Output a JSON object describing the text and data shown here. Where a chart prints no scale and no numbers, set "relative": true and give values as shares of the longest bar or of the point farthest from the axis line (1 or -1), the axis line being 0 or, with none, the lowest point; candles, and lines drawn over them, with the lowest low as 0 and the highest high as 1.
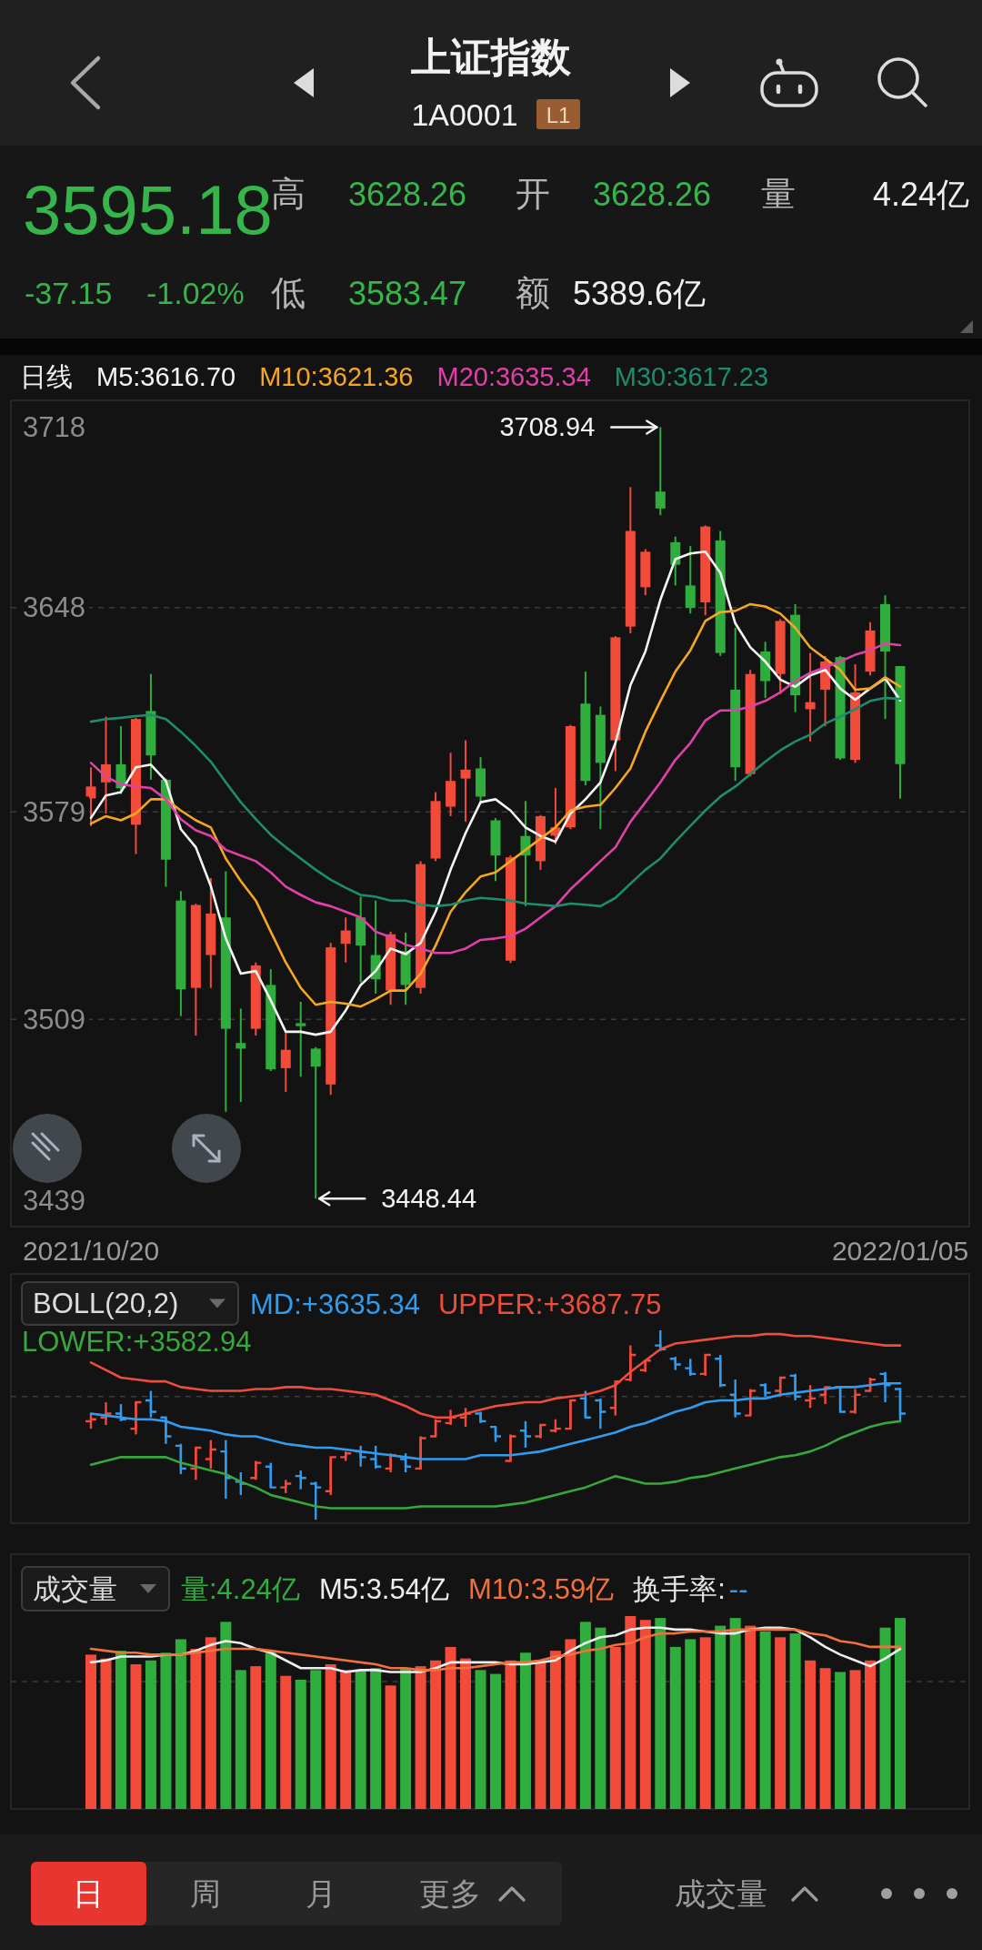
{
  "chart_data": [
    {
      "type": "other",
      "title": "上证指数",
      "subtitle": "1A0001",
      "annotations": [
        "L1",
        "3595.18",
        "高",
        "3628.26",
        "开",
        "3628.26",
        "量",
        "4.24亿",
        "-37.15",
        "-1.02%",
        "低",
        "3583.47",
        "额",
        "5389.6亿"
      ]
    },
    {
      "type": "candlestick",
      "title": "日线",
      "legend": "top",
      "grid": "y",
      "ylim": [
        3439,
        3718
      ],
      "yticks": [
        3439,
        3509,
        3579,
        3648,
        3718
      ],
      "categories": [
        "2021/10/20",
        null,
        null,
        null,
        null,
        null,
        null,
        null,
        null,
        null,
        null,
        null,
        null,
        null,
        null,
        null,
        null,
        null,
        null,
        null,
        null,
        null,
        null,
        null,
        null,
        null,
        null,
        null,
        null,
        null,
        null,
        null,
        null,
        null,
        null,
        null,
        null,
        null,
        null,
        null,
        null,
        null,
        null,
        null,
        null,
        null,
        null,
        null,
        null,
        null,
        null,
        null,
        null,
        null,
        "2022/01/05"
      ],
      "ohlc": [
        [
          3583.6,
          3594.1,
          3574.3,
          3587.6
        ],
        [
          3589.0,
          3611.2,
          3578.5,
          3595.1
        ],
        [
          3595.1,
          3608.0,
          3585.0,
          3587.0
        ],
        [
          3574.7,
          3610.8,
          3564.8,
          3610.4
        ],
        [
          3613.1,
          3625.6,
          3589.9,
          3598.1
        ],
        [
          3589.9,
          3590.3,
          3553.8,
          3562.9
        ],
        [
          3549.1,
          3552.3,
          3510.1,
          3519.1
        ],
        [
          3519.6,
          3548.0,
          3503.5,
          3547.6
        ],
        [
          3530.7,
          3556.7,
          3519.6,
          3544.7
        ],
        [
          3543.4,
          3559.0,
          3477.8,
          3505.8
        ],
        [
          3501.0,
          3512.6,
          3481.1,
          3499.1
        ],
        [
          3505.8,
          3528.2,
          3503.5,
          3527.2
        ],
        [
          3520.6,
          3525.9,
          3491.5,
          3492.1
        ],
        [
          3492.5,
          3504.4,
          3484.5,
          3498.7
        ],
        [
          3507.7,
          3514.9,
          3489.6,
          3506.7
        ],
        [
          3499.1,
          3499.6,
          3448.44,
          3493.0
        ],
        [
          3487.0,
          3534.8,
          3483.5,
          3533.3
        ],
        [
          3534.5,
          3543.4,
          3528.2,
          3539.0
        ],
        [
          3543.4,
          3550.4,
          3521.5,
          3533.9
        ],
        [
          3530.7,
          3549.1,
          3517.7,
          3522.5
        ],
        [
          3518.7,
          3538.6,
          3513.9,
          3537.7
        ],
        [
          3532.0,
          3538.3,
          3513.9,
          3520.6
        ],
        [
          3519.6,
          3562.4,
          3517.7,
          3561.4
        ],
        [
          3563.3,
          3585.7,
          3562.4,
          3582.7
        ],
        [
          3580.8,
          3599.0,
          3577.6,
          3589.5
        ],
        [
          3590.3,
          3603.2,
          3575.7,
          3593.3
        ],
        [
          3593.7,
          3597.5,
          3582.3,
          3584.2
        ],
        [
          3576.2,
          3577.0,
          3555.7,
          3564.3
        ],
        [
          3528.8,
          3564.3,
          3528.0,
          3563.7
        ],
        [
          3570.9,
          3582.7,
          3547.2,
          3564.3
        ],
        [
          3562.4,
          3578.0,
          3559.5,
          3577.6
        ],
        [
          3571.0,
          3587.1,
          3568.1,
          3573.8
        ],
        [
          3573.8,
          3608.4,
          3573.2,
          3608.0
        ],
        [
          3615.6,
          3626.4,
          3588.0,
          3589.5
        ],
        [
          3611.8,
          3614.6,
          3573.2,
          3595.6
        ],
        [
          3603.2,
          3638.4,
          3592.8,
          3638.0
        ],
        [
          3641.6,
          3688.7,
          3639.3,
          3673.9
        ],
        [
          3654.9,
          3667.8,
          3652.2,
          3666.9
        ],
        [
          3687.2,
          3708.94,
          3679.2,
          3681.5
        ],
        [
          3670.1,
          3672.0,
          3655.5,
          3662.5
        ],
        [
          3655.5,
          3668.8,
          3646.0,
          3647.9
        ],
        [
          3649.8,
          3675.8,
          3645.4,
          3675.4
        ],
        [
          3670.7,
          3673.9,
          3631.7,
          3632.7
        ],
        [
          3620.3,
          3641.2,
          3589.5,
          3594.1
        ],
        [
          3591.8,
          3627.0,
          3591.0,
          3625.6
        ],
        [
          3633.2,
          3636.5,
          3617.5,
          3623.2
        ],
        [
          3625.6,
          3644.1,
          3618.8,
          3643.5
        ],
        [
          3645.6,
          3649.2,
          3612.7,
          3618.4
        ],
        [
          3613.7,
          3632.7,
          3602.8,
          3616.1
        ],
        [
          3620.3,
          3631.7,
          3608.0,
          3629.8
        ],
        [
          3631.3,
          3631.7,
          3596.6,
          3597.1
        ],
        [
          3596.6,
          3628.9,
          3595.6,
          3619.4
        ],
        [
          3626.4,
          3643.1,
          3625.1,
          3640.3
        ],
        [
          3649.2,
          3652.2,
          3610.4,
          3633.2
        ],
        [
          3628.26,
          3628.26,
          3583.47,
          3595.18
        ]
      ],
      "colors": [
        "#f24b3a",
        "#f24b3a",
        "#2fae3e",
        "#f24b3a",
        "#2fae3e",
        "#2fae3e",
        "#2fae3e",
        "#f24b3a",
        "#f24b3a",
        "#2fae3e",
        "#2fae3e",
        "#f24b3a",
        "#2fae3e",
        "#f24b3a",
        "#2fae3e",
        "#2fae3e",
        "#f24b3a",
        "#f24b3a",
        "#2fae3e",
        "#2fae3e",
        "#f24b3a",
        "#2fae3e",
        "#f24b3a",
        "#f24b3a",
        "#f24b3a",
        "#f24b3a",
        "#2fae3e",
        "#2fae3e",
        "#f24b3a",
        "#2fae3e",
        "#f24b3a",
        "#f24b3a",
        "#f24b3a",
        "#2fae3e",
        "#2fae3e",
        "#f24b3a",
        "#f24b3a",
        "#f24b3a",
        "#2fae3e",
        "#2fae3e",
        "#2fae3e",
        "#f24b3a",
        "#2fae3e",
        "#2fae3e",
        "#f24b3a",
        "#2fae3e",
        "#f24b3a",
        "#2fae3e",
        "#f24b3a",
        "#f24b3a",
        "#2fae3e",
        "#f24b3a",
        "#f24b3a",
        "#2fae3e",
        "#2fae3e"
      ],
      "series": [
        {
          "type": "line",
          "name": "M5:3616.70",
          "color": "#f5f5f5",
          "values": [
            3577.0,
            3584.6,
            3585.7,
            3594.1,
            3595.0,
            3589.5,
            3573.2,
            3567.1,
            3554.0,
            3536.3,
            3524.4,
            3525.3,
            3515.4,
            3504.8,
            3504.8,
            3503.8,
            3504.8,
            3512.0,
            3520.6,
            3525.3,
            3532.9,
            3531.0,
            3534.8,
            3545.3,
            3559.5,
            3571.9,
            3582.3,
            3583.3,
            3579.5,
            3573.8,
            3570.9,
            3569.0,
            3578.5,
            3583.3,
            3589.0,
            3602.3,
            3621.8,
            3633.2,
            3650.7,
            3664.4,
            3666.3,
            3666.9,
            3659.8,
            3642.7,
            3634.6,
            3629.8,
            3623.7,
            3621.3,
            3625.1,
            3627.0,
            3620.7,
            3616.9,
            3620.7,
            3624.1,
            3616.7
          ]
        },
        {
          "type": "line",
          "name": "M10:3621.36",
          "color": "#f5a623",
          "values": [
            3575.1,
            3577.6,
            3576.2,
            3578.5,
            3583.3,
            3583.3,
            3579.5,
            3576.2,
            3573.8,
            3563.3,
            3555.7,
            3549.1,
            3538.6,
            3528.2,
            3519.6,
            3513.9,
            3514.9,
            3514.3,
            3513.3,
            3515.8,
            3518.7,
            3518.7,
            3524.4,
            3533.9,
            3545.3,
            3551.9,
            3557.2,
            3558.6,
            3562.4,
            3566.2,
            3570.0,
            3573.8,
            3579.5,
            3580.8,
            3581.4,
            3587.1,
            3593.7,
            3606.1,
            3616.5,
            3626.4,
            3633.6,
            3643.5,
            3646.5,
            3646.9,
            3649.2,
            3648.4,
            3646.0,
            3641.2,
            3634.6,
            3630.8,
            3627.0,
            3620.3,
            3620.7,
            3624.5,
            3621.36
          ]
        },
        {
          "type": "line",
          "name": "M20:3635.34",
          "color": "#e040a8",
          "values": [
            3595.6,
            3590.9,
            3588.4,
            3587.6,
            3587.1,
            3583.3,
            3576.6,
            3572.8,
            3570.9,
            3566.2,
            3564.3,
            3562.4,
            3558.6,
            3553.8,
            3551.0,
            3548.5,
            3547.2,
            3545.3,
            3543.4,
            3538.6,
            3536.7,
            3534.2,
            3532.9,
            3531.4,
            3531.4,
            3532.9,
            3535.8,
            3536.3,
            3537.1,
            3539.6,
            3543.4,
            3547.2,
            3552.9,
            3557.6,
            3562.4,
            3567.1,
            3575.7,
            3582.3,
            3589.0,
            3596.6,
            3602.3,
            3609.9,
            3613.3,
            3613.3,
            3614.6,
            3616.5,
            3619.4,
            3623.2,
            3626.0,
            3627.9,
            3629.8,
            3632.1,
            3633.6,
            3635.9,
            3635.34
          ]
        },
        {
          "type": "line",
          "name": "M30:3617.23",
          "color": "#1e8c6e",
          "values": [
            3609.5,
            3610.4,
            3610.8,
            3611.4,
            3611.8,
            3610.4,
            3606.1,
            3601.3,
            3596.0,
            3589.0,
            3582.3,
            3576.6,
            3571.3,
            3567.1,
            3563.3,
            3559.5,
            3556.1,
            3553.4,
            3551.0,
            3550.4,
            3549.1,
            3549.1,
            3547.7,
            3547.2,
            3547.7,
            3549.1,
            3550.0,
            3549.6,
            3549.1,
            3548.1,
            3547.7,
            3547.2,
            3548.1,
            3547.7,
            3547.2,
            3550.0,
            3554.8,
            3559.5,
            3563.3,
            3569.0,
            3574.3,
            3579.5,
            3584.2,
            3587.6,
            3591.8,
            3596.0,
            3599.8,
            3602.8,
            3605.1,
            3608.9,
            3611.2,
            3613.7,
            3616.5,
            3617.5,
            3617.23
          ]
        }
      ],
      "annotations": [
        "3708.94",
        "3448.44"
      ]
    },
    {
      "type": "candlestick",
      "title": "BOLL(20,2)",
      "legend": "top",
      "relative": true,
      "categories": [
        null,
        null,
        null,
        null,
        null,
        null,
        null,
        null,
        null,
        null,
        null,
        null,
        null,
        null,
        null,
        null,
        null,
        null,
        null,
        null,
        null,
        null,
        null,
        null,
        null,
        null,
        null,
        null,
        null,
        null,
        null,
        null,
        null,
        null,
        null,
        null,
        null,
        null,
        null,
        null,
        null,
        null,
        null,
        null,
        null,
        null,
        null,
        null,
        null,
        null,
        null,
        null,
        null,
        null,
        null
      ],
      "ohlc": [
        [
          0.52,
          0.56,
          0.48,
          0.53
        ],
        [
          0.54,
          0.62,
          0.5,
          0.56
        ],
        [
          0.56,
          0.61,
          0.52,
          0.53
        ],
        [
          0.48,
          0.62,
          0.45,
          0.62
        ],
        [
          0.63,
          0.68,
          0.54,
          0.57
        ],
        [
          0.54,
          0.54,
          0.4,
          0.44
        ],
        [
          0.39,
          0.4,
          0.24,
          0.27
        ],
        [
          0.27,
          0.38,
          0.21,
          0.38
        ],
        [
          0.32,
          0.42,
          0.27,
          0.37
        ],
        [
          0.36,
          0.42,
          0.11,
          0.22
        ],
        [
          0.2,
          0.25,
          0.13,
          0.19
        ],
        [
          0.22,
          0.31,
          0.21,
          0.3
        ],
        [
          0.28,
          0.3,
          0.17,
          0.17
        ],
        [
          0.17,
          0.21,
          0.14,
          0.19
        ],
        [
          0.23,
          0.26,
          0.16,
          0.22
        ],
        [
          0.19,
          0.2,
          0,
          0.17
        ],
        [
          0.15,
          0.33,
          0.13,
          0.33
        ],
        [
          0.33,
          0.36,
          0.31,
          0.35
        ],
        [
          0.36,
          0.39,
          0.28,
          0.33
        ],
        [
          0.32,
          0.39,
          0.27,
          0.28
        ],
        [
          0.27,
          0.35,
          0.25,
          0.34
        ],
        [
          0.32,
          0.35,
          0.25,
          0.28
        ],
        [
          0.27,
          0.44,
          0.27,
          0.43
        ],
        [
          0.44,
          0.53,
          0.44,
          0.52
        ],
        [
          0.51,
          0.58,
          0.5,
          0.54
        ],
        [
          0.54,
          0.59,
          0.49,
          0.56
        ],
        [
          0.56,
          0.57,
          0.51,
          0.52
        ],
        [
          0.49,
          0.49,
          0.41,
          0.44
        ],
        [
          0.31,
          0.45,
          0.31,
          0.44
        ],
        [
          0.47,
          0.52,
          0.38,
          0.44
        ],
        [
          0.44,
          0.5,
          0.43,
          0.5
        ],
        [
          0.47,
          0.53,
          0.46,
          0.48
        ],
        [
          0.48,
          0.63,
          0.48,
          0.63
        ],
        [
          0.64,
          0.68,
          0.54,
          0.54
        ],
        [
          0.63,
          0.64,
          0.48,
          0.57
        ],
        [
          0.59,
          0.73,
          0.55,
          0.73
        ],
        [
          0.74,
          0.92,
          0.73,
          0.87
        ],
        [
          0.79,
          0.84,
          0.78,
          0.84
        ],
        [
          0.92,
          1,
          0.89,
          0.9
        ],
        [
          0.85,
          0.86,
          0.79,
          0.82
        ],
        [
          0.8,
          0.85,
          0.76,
          0.77
        ],
        [
          0.77,
          0.87,
          0.76,
          0.87
        ],
        [
          0.85,
          0.87,
          0.7,
          0.71
        ],
        [
          0.66,
          0.74,
          0.54,
          0.56
        ],
        [
          0.55,
          0.69,
          0.55,
          0.68
        ],
        [
          0.71,
          0.72,
          0.65,
          0.67
        ],
        [
          0.68,
          0.75,
          0.65,
          0.75
        ],
        [
          0.76,
          0.77,
          0.63,
          0.65
        ],
        [
          0.63,
          0.71,
          0.59,
          0.64
        ],
        [
          0.66,
          0.7,
          0.61,
          0.7
        ],
        [
          0.7,
          0.7,
          0.57,
          0.57
        ],
        [
          0.57,
          0.69,
          0.56,
          0.66
        ],
        [
          0.68,
          0.75,
          0.68,
          0.74
        ],
        [
          0.77,
          0.78,
          0.62,
          0.71
        ],
        [
          0.69,
          0.69,
          0.52,
          0.56
        ]
      ],
      "colors": [
        "#f24b3a",
        "#f24b3a",
        "#2f9cf0",
        "#f24b3a",
        "#2f9cf0",
        "#2f9cf0",
        "#2f9cf0",
        "#f24b3a",
        "#f24b3a",
        "#2f9cf0",
        "#2f9cf0",
        "#f24b3a",
        "#2f9cf0",
        "#f24b3a",
        "#2f9cf0",
        "#2f9cf0",
        "#f24b3a",
        "#f24b3a",
        "#2f9cf0",
        "#2f9cf0",
        "#f24b3a",
        "#2f9cf0",
        "#f24b3a",
        "#f24b3a",
        "#f24b3a",
        "#f24b3a",
        "#2f9cf0",
        "#2f9cf0",
        "#f24b3a",
        "#2f9cf0",
        "#f24b3a",
        "#f24b3a",
        "#f24b3a",
        "#2f9cf0",
        "#2f9cf0",
        "#f24b3a",
        "#f24b3a",
        "#f24b3a",
        "#2f9cf0",
        "#2f9cf0",
        "#2f9cf0",
        "#f24b3a",
        "#2f9cf0",
        "#2f9cf0",
        "#f24b3a",
        "#2f9cf0",
        "#f24b3a",
        "#2f9cf0",
        "#f24b3a",
        "#f24b3a",
        "#2f9cf0",
        "#f24b3a",
        "#f24b3a",
        "#2f9cf0",
        "#2f9cf0"
      ],
      "series": [
        {
          "type": "line",
          "name": "MD:+3635.34",
          "color": "#2f9cf0",
          "values": [
            0.56,
            0.55,
            0.54,
            0.53,
            0.53,
            0.52,
            0.49,
            0.48,
            0.47,
            0.45,
            0.44,
            0.44,
            0.42,
            0.4,
            0.39,
            0.38,
            0.38,
            0.37,
            0.36,
            0.35,
            0.34,
            0.33,
            0.32,
            0.32,
            0.32,
            0.32,
            0.34,
            0.34,
            0.34,
            0.35,
            0.36,
            0.38,
            0.4,
            0.42,
            0.44,
            0.46,
            0.49,
            0.51,
            0.54,
            0.57,
            0.59,
            0.62,
            0.63,
            0.63,
            0.64,
            0.64,
            0.66,
            0.67,
            0.68,
            0.69,
            0.7,
            0.7,
            0.71,
            0.72,
            0.72
          ]
        },
        {
          "type": "line",
          "name": "UPPER:+3687.75",
          "color": "#ee4d3b",
          "values": [
            0.83,
            0.79,
            0.75,
            0.74,
            0.73,
            0.73,
            0.7,
            0.69,
            0.68,
            0.68,
            0.68,
            0.69,
            0.69,
            0.7,
            0.7,
            0.69,
            0.69,
            0.68,
            0.67,
            0.66,
            0.63,
            0.6,
            0.56,
            0.54,
            0.54,
            0.56,
            0.58,
            0.6,
            0.61,
            0.62,
            0.62,
            0.64,
            0.65,
            0.66,
            0.68,
            0.71,
            0.78,
            0.84,
            0.9,
            0.93,
            0.94,
            0.95,
            0.96,
            0.97,
            0.97,
            0.98,
            0.98,
            0.97,
            0.97,
            0.96,
            0.95,
            0.94,
            0.93,
            0.92,
            0.92
          ]
        },
        {
          "type": "line",
          "name": "LOWER:+3582.94",
          "color": "#37a83c",
          "values": [
            0.29,
            0.31,
            0.33,
            0.33,
            0.33,
            0.33,
            0.3,
            0.28,
            0.26,
            0.24,
            0.2,
            0.17,
            0.13,
            0.11,
            0.09,
            0.07,
            0.06,
            0.06,
            0.06,
            0.06,
            0.06,
            0.06,
            0.07,
            0.07,
            0.07,
            0.07,
            0.07,
            0.07,
            0.08,
            0.09,
            0.11,
            0.13,
            0.15,
            0.17,
            0.2,
            0.23,
            0.21,
            0.19,
            0.19,
            0.2,
            0.22,
            0.23,
            0.25,
            0.27,
            0.29,
            0.31,
            0.33,
            0.34,
            0.36,
            0.39,
            0.43,
            0.46,
            0.49,
            0.51,
            0.52
          ]
        }
      ],
      "ref_lines": [
        {
          "axis": "y",
          "value": 0.65,
          "color": "#3b3b3b",
          "line_style": "dashed"
        }
      ]
    },
    {
      "type": "bar",
      "title": "成交量",
      "legend": "top",
      "relative": true,
      "categories": [
        null,
        null,
        null,
        null,
        null,
        null,
        null,
        null,
        null,
        null,
        null,
        null,
        null,
        null,
        null,
        null,
        null,
        null,
        null,
        null,
        null,
        null,
        null,
        null,
        null,
        null,
        null,
        null,
        null,
        null,
        null,
        null,
        null,
        null,
        null,
        null,
        null,
        null,
        null,
        null,
        null,
        null,
        null,
        null,
        null,
        null,
        null,
        null,
        null,
        null,
        null,
        null,
        null,
        null,
        null
      ],
      "series": [
        {
          "name": "量:4.24亿",
          "color": "#2fae3e",
          "colors": [
            "#f24b3a",
            "#f24b3a",
            "#2fae3e",
            "#f24b3a",
            "#2fae3e",
            "#2fae3e",
            "#2fae3e",
            "#f24b3a",
            "#f24b3a",
            "#2fae3e",
            "#2fae3e",
            "#f24b3a",
            "#2fae3e",
            "#f24b3a",
            "#2fae3e",
            "#2fae3e",
            "#f24b3a",
            "#f24b3a",
            "#2fae3e",
            "#2fae3e",
            "#f24b3a",
            "#2fae3e",
            "#f24b3a",
            "#f24b3a",
            "#f24b3a",
            "#f24b3a",
            "#2fae3e",
            "#2fae3e",
            "#f24b3a",
            "#2fae3e",
            "#f24b3a",
            "#f24b3a",
            "#f24b3a",
            "#2fae3e",
            "#2fae3e",
            "#f24b3a",
            "#f24b3a",
            "#f24b3a",
            "#2fae3e",
            "#2fae3e",
            "#2fae3e",
            "#f24b3a",
            "#2fae3e",
            "#2fae3e",
            "#f24b3a",
            "#2fae3e",
            "#f24b3a",
            "#2fae3e",
            "#f24b3a",
            "#f24b3a",
            "#2fae3e",
            "#f24b3a",
            "#f24b3a",
            "#2fae3e",
            "#2fae3e"
          ],
          "values": [
            0.8,
            0.78,
            0.82,
            0.75,
            0.77,
            0.81,
            0.88,
            0.83,
            0.89,
            0.97,
            0.72,
            0.74,
            0.81,
            0.69,
            0.67,
            0.72,
            0.75,
            0.72,
            0.72,
            0.73,
            0.64,
            0.73,
            0.74,
            0.77,
            0.84,
            0.78,
            0.72,
            0.7,
            0.77,
            0.81,
            0.77,
            0.82,
            0.88,
            0.97,
            0.94,
            0.84,
            1,
            0.98,
            0.99,
            0.84,
            0.88,
            0.89,
            0.95,
            0.99,
            0.95,
            0.92,
            0.89,
            0.91,
            0.77,
            0.73,
            0.71,
            0.72,
            0.77,
            0.94,
            0.99
          ]
        },
        {
          "type": "line",
          "name": "M5:3.54亿",
          "color": "#eeeeee",
          "values": [
            0.76,
            0.77,
            0.79,
            0.79,
            0.79,
            0.8,
            0.8,
            0.82,
            0.85,
            0.87,
            0.86,
            0.83,
            0.81,
            0.77,
            0.73,
            0.73,
            0.73,
            0.71,
            0.72,
            0.72,
            0.71,
            0.71,
            0.71,
            0.73,
            0.76,
            0.76,
            0.76,
            0.76,
            0.75,
            0.75,
            0.76,
            0.77,
            0.82,
            0.86,
            0.89,
            0.9,
            0.93,
            0.94,
            0.94,
            0.93,
            0.93,
            0.92,
            0.91,
            0.91,
            0.93,
            0.94,
            0.94,
            0.93,
            0.89,
            0.84,
            0.8,
            0.77,
            0.74,
            0.78,
            0.83
          ]
        },
        {
          "type": "line",
          "name": "M10:3.59亿",
          "color": "#f2703c",
          "values": [
            0.83,
            0.82,
            0.81,
            0.81,
            0.8,
            0.8,
            0.8,
            0.81,
            0.82,
            0.83,
            0.83,
            0.83,
            0.82,
            0.81,
            0.8,
            0.79,
            0.78,
            0.77,
            0.76,
            0.75,
            0.73,
            0.73,
            0.72,
            0.72,
            0.73,
            0.73,
            0.74,
            0.75,
            0.76,
            0.76,
            0.77,
            0.79,
            0.8,
            0.82,
            0.83,
            0.85,
            0.86,
            0.89,
            0.91,
            0.91,
            0.92,
            0.92,
            0.92,
            0.93,
            0.93,
            0.93,
            0.93,
            0.93,
            0.91,
            0.9,
            0.87,
            0.86,
            0.84,
            0.84,
            0.84
          ]
        }
      ],
      "ref_lines": [
        {
          "axis": "y",
          "value": 0.66,
          "color": "#3b3b3b",
          "line_style": "dashed"
        }
      ],
      "annotations": [
        "换手率:",
        "--"
      ]
    },
    {
      "type": "other",
      "annotations": [
        "日",
        "周",
        "月",
        "更多",
        "成交量"
      ]
    }
  ]
}
